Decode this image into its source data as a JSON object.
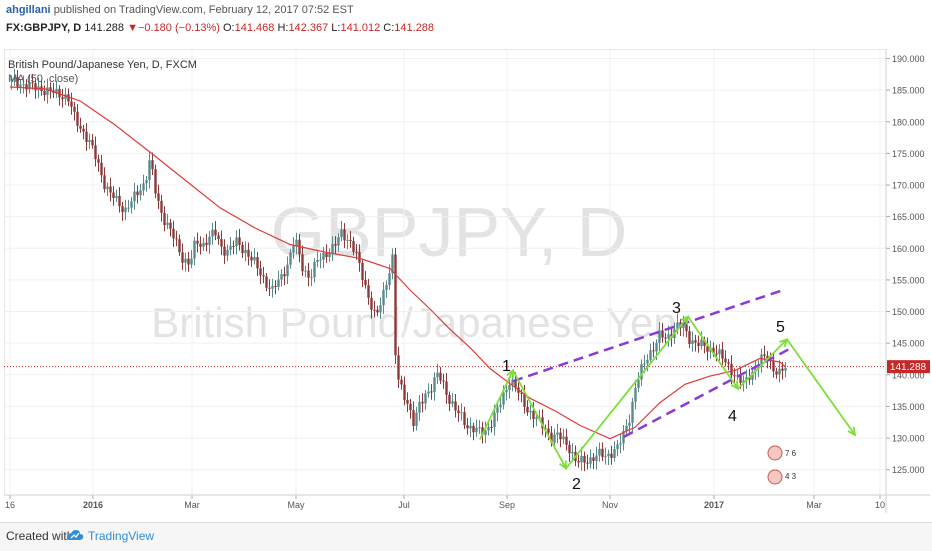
{
  "header": {
    "author": "ahgillani",
    "published": "published on TradingView.com, February 12, 2017 07:52 EST",
    "symbol": "FX:GBPJPY, D",
    "last": "141.288",
    "change": "−0.180 (−0.13%)",
    "o_label": "O:",
    "o_value": "141.468",
    "h_label": "H:",
    "h_value": "142.367",
    "l_label": "L:",
    "l_value": "141.012",
    "c_label": "C:",
    "c_value": "141.288"
  },
  "chart_legend": {
    "title": "British Pound/Japanese Yen, D, FXCM",
    "ma": "MA (50, close)"
  },
  "watermark": {
    "symbol": "GBPJPY, D",
    "name": "British Pound/Japanese Yen"
  },
  "annotations": {
    "wave_labels": [
      "1",
      "2",
      "3",
      "4",
      "5"
    ]
  },
  "footer": {
    "created_with": "Created with",
    "brand": "TradingView"
  },
  "colors": {
    "up": "#5b8a8a",
    "down": "#8b3a3a",
    "ma": "#e03a3a",
    "wave": "#7ddf3a",
    "channel": "#8a3ad8",
    "last_price_bg": "#c62828"
  },
  "chart_data": {
    "type": "candlestick",
    "x_ticks": [
      "16",
      "2016",
      "Mar",
      "May",
      "Jul",
      "Sep",
      "Nov",
      "2017",
      "Mar",
      "10"
    ],
    "y_ticks": [
      "190.000",
      "185.000",
      "180.000",
      "175.000",
      "170.000",
      "165.000",
      "160.000",
      "155.000",
      "150.000",
      "145.000",
      "140.000",
      "135.000",
      "130.000",
      "125.000"
    ],
    "ylim": [
      121,
      191.5
    ],
    "last_price": "141.288",
    "close_path": [
      [
        0,
        186.5
      ],
      [
        8,
        186.2
      ],
      [
        15,
        185.8
      ],
      [
        22,
        185.5
      ],
      [
        30,
        185.3
      ],
      [
        38,
        184.8
      ],
      [
        45,
        184.6
      ],
      [
        52,
        184.3
      ],
      [
        58,
        183.7
      ],
      [
        65,
        180.5
      ],
      [
        72,
        178.8
      ],
      [
        80,
        176.5
      ],
      [
        88,
        173.5
      ],
      [
        95,
        170.0
      ],
      [
        100,
        168.6
      ],
      [
        108,
        167.3
      ],
      [
        115,
        166.0
      ],
      [
        122,
        167.4
      ],
      [
        128,
        168.9
      ],
      [
        135,
        170.5
      ],
      [
        140,
        174.0
      ],
      [
        146,
        168.5
      ],
      [
        152,
        165.4
      ],
      [
        158,
        163.6
      ],
      [
        165,
        161.2
      ],
      [
        172,
        158.6
      ],
      [
        180,
        157.5
      ],
      [
        186,
        161.1
      ],
      [
        192,
        160.4
      ],
      [
        198,
        161.6
      ],
      [
        205,
        162.4
      ],
      [
        212,
        160.0
      ],
      [
        218,
        159.6
      ],
      [
        226,
        161.0
      ],
      [
        235,
        159.7
      ],
      [
        245,
        157.5
      ],
      [
        254,
        155.2
      ],
      [
        262,
        153.1
      ],
      [
        270,
        155.2
      ],
      [
        278,
        157.6
      ],
      [
        285,
        161.5
      ],
      [
        292,
        157.3
      ],
      [
        300,
        155.2
      ],
      [
        308,
        158.2
      ],
      [
        316,
        159.3
      ],
      [
        324,
        160.0
      ],
      [
        332,
        162.7
      ],
      [
        340,
        161.0
      ],
      [
        347,
        158.5
      ],
      [
        354,
        155.0
      ],
      [
        360,
        151.5
      ],
      [
        366,
        148.7
      ],
      [
        372,
        152.2
      ],
      [
        378,
        155.7
      ],
      [
        383,
        158.6
      ],
      [
        386,
        140.0
      ],
      [
        392,
        137.7
      ],
      [
        398,
        135.6
      ],
      [
        404,
        132.0
      ],
      [
        410,
        135.4
      ],
      [
        416,
        137.2
      ],
      [
        422,
        138.0
      ],
      [
        428,
        140.1
      ],
      [
        434,
        138.4
      ],
      [
        440,
        135.9
      ],
      [
        446,
        134.2
      ],
      [
        452,
        133.3
      ],
      [
        458,
        131.9
      ],
      [
        464,
        131.3
      ],
      [
        470,
        130.9
      ],
      [
        476,
        131.3
      ],
      [
        482,
        132.6
      ],
      [
        488,
        134.5
      ],
      [
        494,
        137.0
      ],
      [
        500,
        139.4
      ],
      [
        506,
        137.8
      ],
      [
        512,
        136.1
      ],
      [
        518,
        134.5
      ],
      [
        524,
        133.4
      ],
      [
        530,
        132.3
      ],
      [
        536,
        131.5
      ],
      [
        542,
        130.0
      ],
      [
        548,
        130.3
      ],
      [
        554,
        129.7
      ],
      [
        560,
        128.4
      ],
      [
        566,
        126.1
      ],
      [
        572,
        126.3
      ],
      [
        578,
        126.6
      ],
      [
        584,
        126.9
      ],
      [
        590,
        127.4
      ],
      [
        596,
        127.2
      ],
      [
        602,
        127.8
      ],
      [
        608,
        128.4
      ],
      [
        614,
        130.8
      ],
      [
        620,
        133.6
      ],
      [
        626,
        138.2
      ],
      [
        632,
        141.0
      ],
      [
        638,
        143.2
      ],
      [
        644,
        144.3
      ],
      [
        650,
        146.2
      ],
      [
        656,
        145.8
      ],
      [
        662,
        146.8
      ],
      [
        668,
        147.7
      ],
      [
        674,
        147.5
      ],
      [
        680,
        145.7
      ],
      [
        686,
        144.9
      ],
      [
        692,
        144.6
      ],
      [
        698,
        144.3
      ],
      [
        704,
        143.8
      ],
      [
        710,
        143.0
      ],
      [
        716,
        142.0
      ],
      [
        722,
        140.7
      ],
      [
        728,
        139.1
      ],
      [
        734,
        138.6
      ],
      [
        740,
        140.3
      ],
      [
        746,
        140.9
      ],
      [
        752,
        142.5
      ],
      [
        758,
        143.0
      ],
      [
        764,
        140.8
      ],
      [
        770,
        140.0
      ],
      [
        776,
        141.3
      ]
    ],
    "ma_path": [
      [
        0,
        185.5
      ],
      [
        35,
        185.2
      ],
      [
        70,
        183.3
      ],
      [
        105,
        179.5
      ],
      [
        140,
        175.2
      ],
      [
        175,
        170.8
      ],
      [
        210,
        166.4
      ],
      [
        245,
        163.2
      ],
      [
        280,
        160.6
      ],
      [
        315,
        159.4
      ],
      [
        350,
        158.4
      ],
      [
        380,
        156.8
      ],
      [
        400,
        153.4
      ],
      [
        420,
        150.4
      ],
      [
        440,
        147.2
      ],
      [
        460,
        144.3
      ],
      [
        480,
        141.0
      ],
      [
        500,
        138.6
      ],
      [
        520,
        136.3
      ],
      [
        545,
        134.3
      ],
      [
        570,
        132.0
      ],
      [
        600,
        129.9
      ],
      [
        625,
        131.7
      ],
      [
        650,
        135.6
      ],
      [
        675,
        138.5
      ],
      [
        700,
        139.8
      ],
      [
        725,
        140.7
      ],
      [
        750,
        142.6
      ],
      [
        770,
        142.0
      ],
      [
        775,
        141.3
      ]
    ],
    "wave_arrows": [
      [
        [
          470,
          129.8
        ],
        [
          503,
          140.7
        ]
      ],
      [
        [
          503,
          140.7
        ],
        [
          556,
          125.2
        ]
      ],
      [
        [
          556,
          125.2
        ],
        [
          678,
          149.2
        ]
      ],
      [
        [
          678,
          149.2
        ],
        [
          728,
          137.8
        ]
      ],
      [
        [
          728,
          137.8
        ],
        [
          777,
          145.6
        ]
      ],
      [
        [
          777,
          145.6
        ],
        [
          845,
          130.5
        ]
      ]
    ],
    "channel_lines": [
      [
        [
          503,
          139.0
        ],
        [
          775,
          153.5
        ]
      ],
      [
        [
          614,
          130.2
        ],
        [
          782,
          144.3
        ]
      ]
    ]
  }
}
